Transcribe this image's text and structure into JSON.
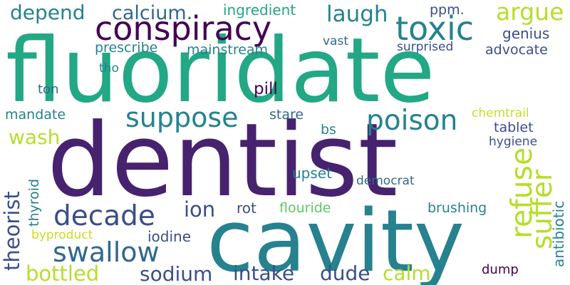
{
  "palette": {
    "purple": "#46226f",
    "darkblue": "#3b4e8a",
    "blue": "#31688e",
    "teal": "#26828e",
    "green": "#22a884",
    "lightgreen": "#5ec962",
    "yellowgreen": "#b5de2b",
    "yellow": "#c9dd26",
    "dark": "#440154"
  },
  "words": [
    {
      "text": "fluoridate",
      "color": "green"
    },
    {
      "text": "dentist",
      "color": "purple"
    },
    {
      "text": "cavity",
      "color": "teal"
    },
    {
      "text": "conspiracy",
      "color": "dark"
    },
    {
      "text": "toxic",
      "color": "teal"
    },
    {
      "text": "suppose",
      "color": "teal"
    },
    {
      "text": "poison",
      "color": "teal"
    },
    {
      "text": "decade",
      "color": "darkblue"
    },
    {
      "text": "swallow",
      "color": "blue"
    },
    {
      "text": "refuse",
      "color": "yellowgreen"
    },
    {
      "text": "suffer",
      "color": "yellowgreen"
    },
    {
      "text": "depend",
      "color": "teal"
    },
    {
      "text": "calcium.",
      "color": "blue"
    },
    {
      "text": "ingredient",
      "color": "green"
    },
    {
      "text": "laugh",
      "color": "teal"
    },
    {
      "text": "argue",
      "color": "yellowgreen"
    },
    {
      "text": "ppm.",
      "color": "darkblue"
    },
    {
      "text": "genius",
      "color": "darkblue"
    },
    {
      "text": "prescribe",
      "color": "teal"
    },
    {
      "text": "mainstream",
      "color": "teal"
    },
    {
      "text": "vast",
      "color": "blue"
    },
    {
      "text": "advocate",
      "color": "darkblue"
    },
    {
      "text": "surprised",
      "color": "darkblue"
    },
    {
      "text": "tho",
      "color": "teal"
    },
    {
      "text": "ton",
      "color": "blue"
    },
    {
      "text": "pill",
      "color": "dark"
    },
    {
      "text": "mandate",
      "color": "teal"
    },
    {
      "text": "stare",
      "color": "blue"
    },
    {
      "text": "chemtrail",
      "color": "yellow"
    },
    {
      "text": "wash",
      "color": "yellowgreen"
    },
    {
      "text": "bs",
      "color": "teal"
    },
    {
      "text": "tablet",
      "color": "darkblue"
    },
    {
      "text": "hygiene",
      "color": "darkblue"
    },
    {
      "text": "theorist",
      "color": "darkblue"
    },
    {
      "text": "thyroid",
      "color": "teal"
    },
    {
      "text": "upset",
      "color": "teal"
    },
    {
      "text": "democrat",
      "color": "blue"
    },
    {
      "text": "antibiotic",
      "color": "teal"
    },
    {
      "text": "ion",
      "color": "darkblue"
    },
    {
      "text": "rot",
      "color": "darkblue"
    },
    {
      "text": "flouride",
      "color": "lightgreen"
    },
    {
      "text": "brushing",
      "color": "teal"
    },
    {
      "text": "byproduct",
      "color": "yellow"
    },
    {
      "text": "iodine",
      "color": "darkblue"
    },
    {
      "text": "bottled",
      "color": "yellowgreen"
    },
    {
      "text": "sodium",
      "color": "darkblue"
    },
    {
      "text": "intake",
      "color": "darkblue"
    },
    {
      "text": "dude",
      "color": "darkblue"
    },
    {
      "text": "calm",
      "color": "yellowgreen"
    },
    {
      "text": "dump",
      "color": "dark"
    }
  ]
}
